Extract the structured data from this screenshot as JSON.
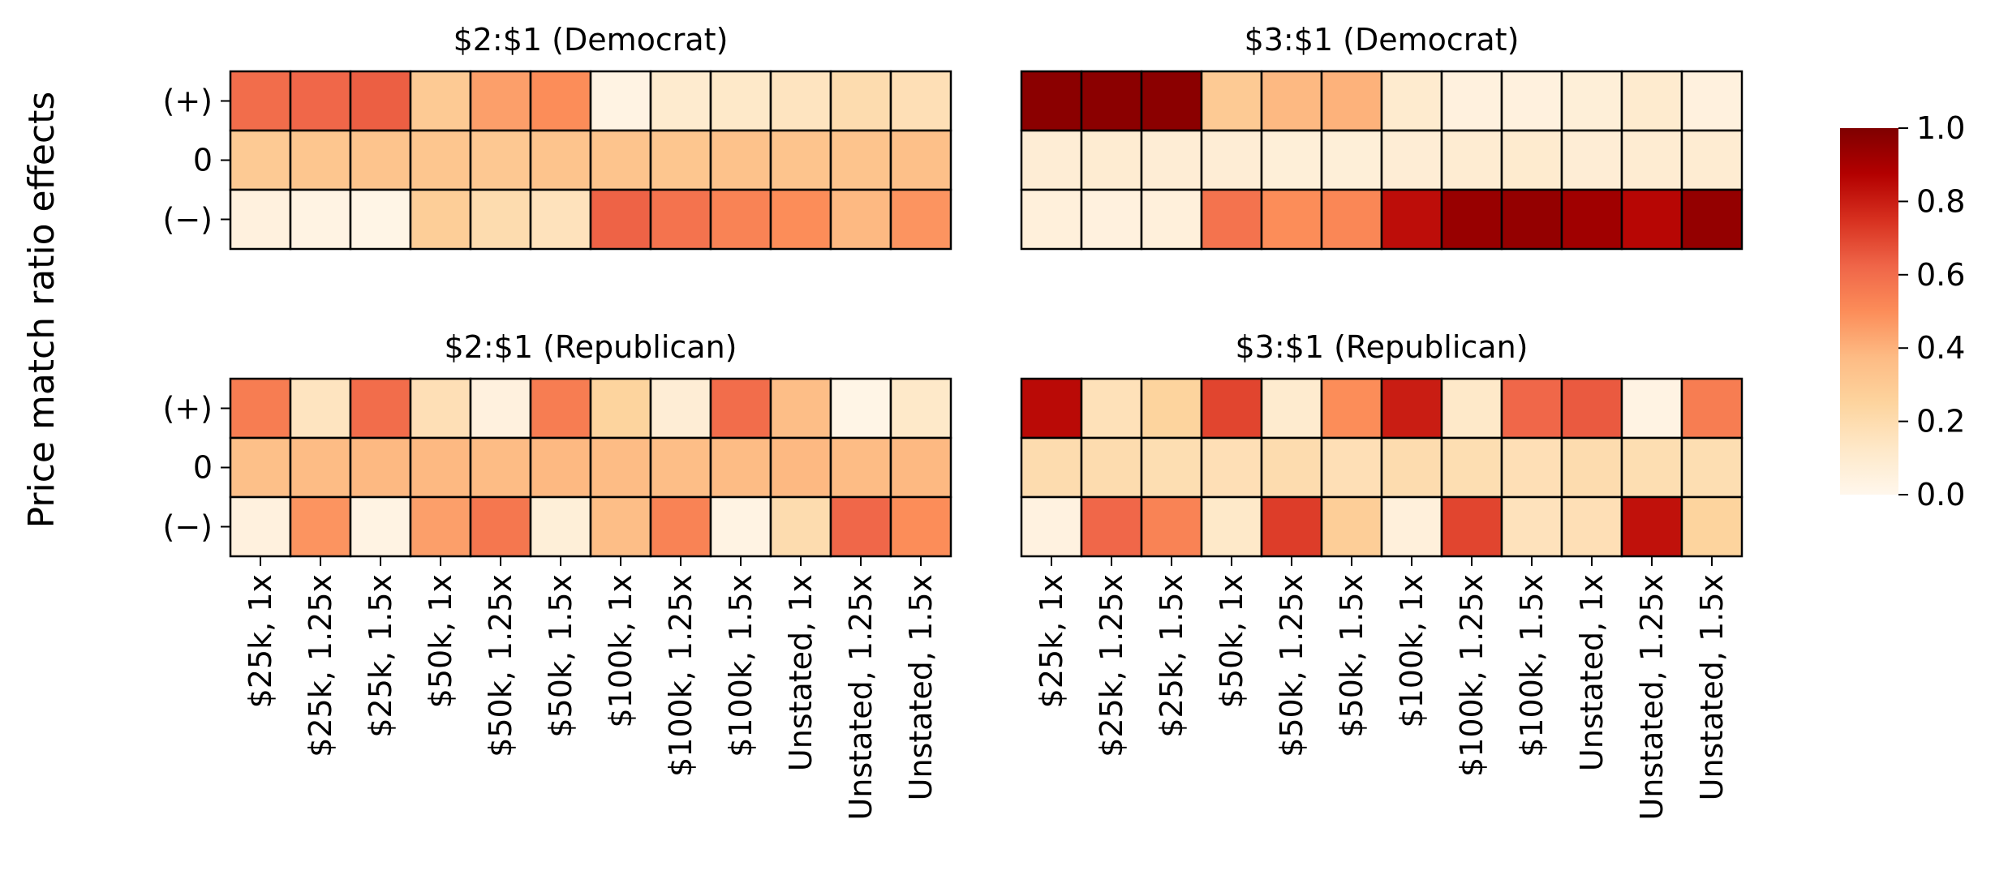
{
  "figure": {
    "ylabel": "Price match ratio effects"
  },
  "chart_data": {
    "type": "heatmap",
    "colormap": "OrRd",
    "color_range": [
      0.0,
      1.0
    ],
    "colorbar_ticks": [
      "0.0",
      "0.2",
      "0.4",
      "0.6",
      "0.8",
      "1.0"
    ],
    "rows": [
      "(+)",
      "0",
      "(−)"
    ],
    "columns": [
      "$25k, 1x",
      "$25k, 1.25x",
      "$25k, 1.5x",
      "$50k, 1x",
      "$50k, 1.25x",
      "$50k, 1.5x",
      "$100k, 1x",
      "$100k, 1.25x",
      "$100k, 1.5x",
      "Unstated, 1x",
      "Unstated, 1.25x",
      "Unstated, 1.5x"
    ],
    "panels": [
      {
        "title": "$2:$1 (Democrat)",
        "values": [
          [
            0.6,
            0.62,
            0.64,
            0.3,
            0.45,
            0.5,
            0.03,
            0.1,
            0.12,
            0.15,
            0.2,
            0.18
          ],
          [
            0.3,
            0.32,
            0.33,
            0.32,
            0.31,
            0.33,
            0.33,
            0.32,
            0.34,
            0.33,
            0.33,
            0.35
          ],
          [
            0.05,
            0.03,
            0.02,
            0.28,
            0.2,
            0.16,
            0.63,
            0.58,
            0.53,
            0.5,
            0.38,
            0.48
          ]
        ]
      },
      {
        "title": "$3:$1 (Democrat)",
        "values": [
          [
            0.97,
            0.97,
            0.97,
            0.3,
            0.38,
            0.4,
            0.1,
            0.05,
            0.05,
            0.07,
            0.1,
            0.05
          ],
          [
            0.08,
            0.09,
            0.08,
            0.08,
            0.07,
            0.07,
            0.08,
            0.09,
            0.1,
            0.08,
            0.09,
            0.09
          ],
          [
            0.06,
            0.05,
            0.06,
            0.58,
            0.5,
            0.52,
            0.84,
            0.94,
            0.95,
            0.92,
            0.86,
            0.95
          ]
        ]
      },
      {
        "title": "$2:$1 (Republican)",
        "values": [
          [
            0.55,
            0.15,
            0.6,
            0.18,
            0.05,
            0.55,
            0.25,
            0.08,
            0.6,
            0.36,
            0.02,
            0.12
          ],
          [
            0.35,
            0.37,
            0.38,
            0.38,
            0.37,
            0.38,
            0.37,
            0.36,
            0.37,
            0.38,
            0.37,
            0.38
          ],
          [
            0.05,
            0.48,
            0.03,
            0.45,
            0.57,
            0.07,
            0.36,
            0.53,
            0.03,
            0.2,
            0.62,
            0.5
          ]
        ]
      },
      {
        "title": "$3:$1 (Republican)",
        "values": [
          [
            0.85,
            0.17,
            0.25,
            0.7,
            0.1,
            0.5,
            0.8,
            0.12,
            0.62,
            0.65,
            0.03,
            0.55
          ],
          [
            0.2,
            0.2,
            0.19,
            0.18,
            0.2,
            0.18,
            0.2,
            0.19,
            0.18,
            0.2,
            0.19,
            0.19
          ],
          [
            0.04,
            0.62,
            0.53,
            0.12,
            0.72,
            0.28,
            0.06,
            0.7,
            0.16,
            0.18,
            0.83,
            0.25
          ]
        ]
      }
    ]
  }
}
